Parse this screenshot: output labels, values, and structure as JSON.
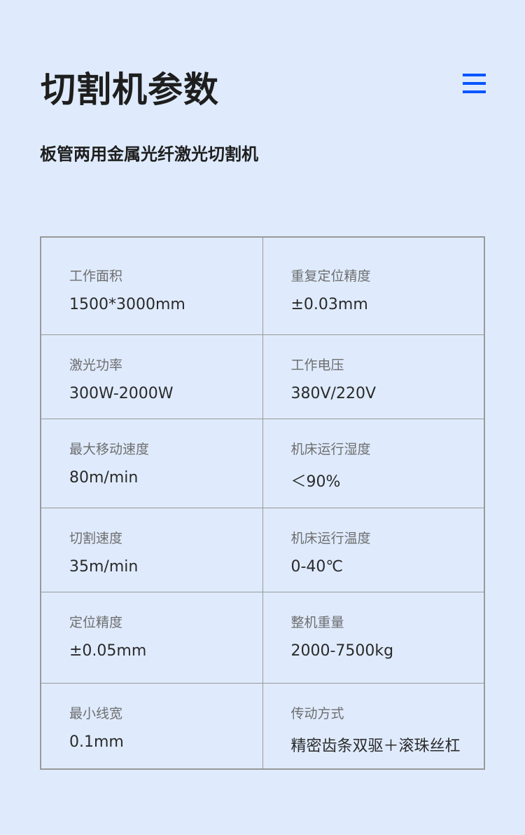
{
  "header": {
    "title": "切割机参数",
    "menu_icon": "hamburger-menu-icon",
    "accent_color": "#0055ff"
  },
  "subtitle": "板管两用金属光纤激光切割机",
  "specs": [
    [
      {
        "label": "工作面积",
        "value": "1500*3000mm"
      },
      {
        "label": "重复定位精度",
        "value": "±0.03mm"
      }
    ],
    [
      {
        "label": "激光功率",
        "value": "300W-2000W"
      },
      {
        "label": "工作电压",
        "value": "380V/220V"
      }
    ],
    [
      {
        "label": "最大移动速度",
        "value": "80m/min"
      },
      {
        "label": "机床运行湿度",
        "value": "＜90%"
      }
    ],
    [
      {
        "label": "切割速度",
        "value": "35m/min"
      },
      {
        "label": "机床运行温度",
        "value": "0-40℃"
      }
    ],
    [
      {
        "label": "定位精度",
        "value": "±0.05mm"
      },
      {
        "label": "整机重量",
        "value": "2000-7500kg"
      }
    ],
    [
      {
        "label": "最小线宽",
        "value": "0.1mm"
      },
      {
        "label": "传动方式",
        "value": "精密齿条双驱＋滚珠丝杠"
      }
    ]
  ]
}
